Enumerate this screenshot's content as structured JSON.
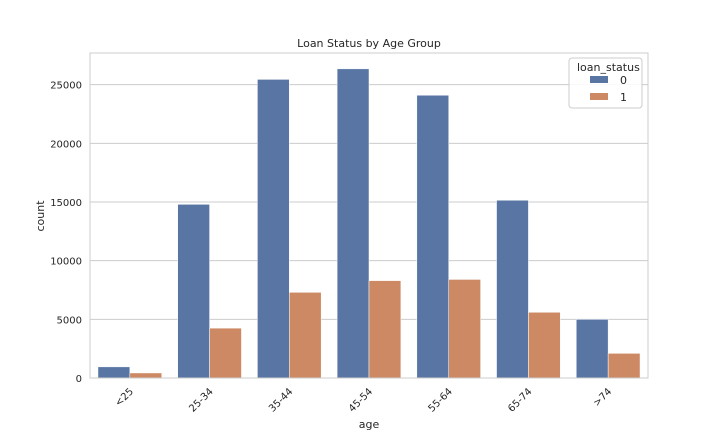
{
  "chart_data": {
    "type": "bar",
    "title": "Loan Status by Age Group",
    "xlabel": "age",
    "ylabel": "count",
    "categories": [
      "<25",
      "25-34",
      "35-44",
      "45-54",
      "55-64",
      "65-74",
      ">74"
    ],
    "series": [
      {
        "name": "0",
        "color": "#5875a4",
        "values": [
          950,
          14800,
          25450,
          26350,
          24100,
          15150,
          5000
        ]
      },
      {
        "name": "1",
        "color": "#cc8963",
        "values": [
          430,
          4250,
          7300,
          8300,
          8400,
          5600,
          2100
        ]
      }
    ],
    "ylim": [
      0,
      27700
    ],
    "yticks": [
      0,
      5000,
      10000,
      15000,
      20000,
      25000
    ],
    "grid": "horizontal",
    "legend": {
      "title": "loan_status",
      "placement": "top-right"
    }
  }
}
